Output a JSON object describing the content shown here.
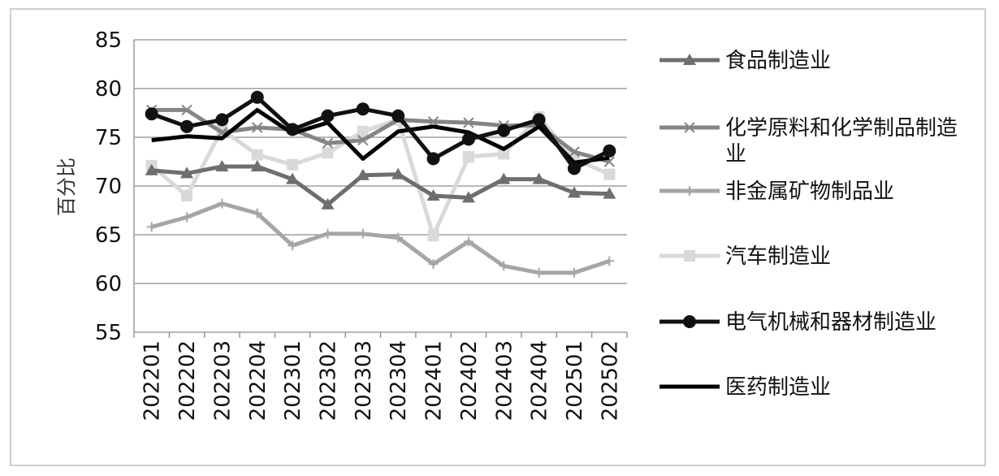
{
  "chart_data": {
    "type": "line",
    "title": "",
    "xlabel": "",
    "ylabel": "百分比",
    "ylim": [
      55,
      85
    ],
    "yticks": [
      55,
      60,
      65,
      70,
      75,
      80,
      85
    ],
    "grid": true,
    "legend_position": "right",
    "categories": [
      "202201",
      "202202",
      "202203",
      "202204",
      "202301",
      "202302",
      "202303",
      "202304",
      "202401",
      "202402",
      "202403",
      "202404",
      "202501",
      "202502"
    ],
    "series": [
      {
        "name": "食品制造业",
        "color": "#6e6e6e",
        "marker": "triangle",
        "values": [
          71.6,
          71.3,
          72.0,
          72.0,
          70.7,
          68.1,
          71.1,
          71.2,
          69.0,
          68.8,
          70.7,
          70.7,
          69.3,
          69.2
        ]
      },
      {
        "name": "化学原料和化学制品制造业",
        "color": "#858585",
        "marker": "x",
        "values": [
          77.8,
          77.8,
          75.5,
          76.0,
          75.8,
          74.4,
          74.7,
          76.8,
          76.6,
          76.5,
          76.2,
          76.2,
          73.5,
          72.5
        ]
      },
      {
        "name": "非金属矿物制品业",
        "color": "#a6a6a6",
        "marker": "plus",
        "values": [
          65.8,
          66.8,
          68.2,
          67.2,
          63.9,
          65.1,
          65.1,
          64.7,
          62.0,
          64.3,
          61.8,
          61.1,
          61.1,
          62.3
        ]
      },
      {
        "name": "汽车制造业",
        "color": "#d9d9d9",
        "marker": "square",
        "values": [
          72.1,
          69.0,
          75.8,
          73.2,
          72.2,
          73.4,
          75.6,
          76.8,
          64.9,
          73.0,
          73.3,
          77.1,
          72.8,
          71.2
        ]
      },
      {
        "name": "电气机械和器材制造业",
        "color": "#111111",
        "marker": "circle",
        "values": [
          77.4,
          76.1,
          76.8,
          79.1,
          75.8,
          77.2,
          77.9,
          77.2,
          72.8,
          74.8,
          75.7,
          76.8,
          71.8,
          73.6
        ]
      },
      {
        "name": "医药制造业",
        "color": "#000000",
        "marker": "none",
        "values": [
          74.7,
          75.1,
          74.9,
          77.8,
          75.4,
          76.5,
          72.8,
          75.6,
          76.1,
          75.5,
          73.8,
          76.1,
          72.4,
          72.9
        ]
      }
    ]
  }
}
